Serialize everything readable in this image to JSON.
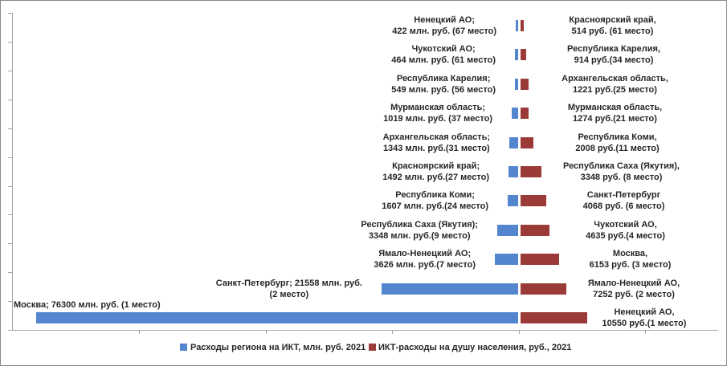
{
  "legend": {
    "left": "Расходы региона на ИКТ, млн. руб. 2021",
    "right": "ИКТ-расходы на душу населения, руб., 2021"
  },
  "colors": {
    "left_series": "#5486d0",
    "right_series": "#9a3b37",
    "axis": "#a6a6a6",
    "text": "#262626"
  },
  "rows": [
    {
      "left": {
        "region": "Ненецкий АО",
        "value": 422,
        "rank": 67,
        "label_lines": [
          "Ненецкий АО;",
          "422 млн. руб. (67 место)"
        ]
      },
      "right": {
        "region": "Красноярский край",
        "value": 514,
        "rank": 61,
        "label_lines": [
          "Красноярский край,",
          "514 руб. (61 место)"
        ]
      }
    },
    {
      "left": {
        "region": "Чукотский АО",
        "value": 464,
        "rank": 61,
        "label_lines": [
          "Чукотский АО;",
          "464 млн. руб. (61 место)"
        ]
      },
      "right": {
        "region": "Республика Карелия",
        "value": 914,
        "rank": 34,
        "label_lines": [
          "Республика Карелия,",
          "914 руб.(34 место)"
        ]
      }
    },
    {
      "left": {
        "region": "Республика Карелия",
        "value": 549,
        "rank": 56,
        "label_lines": [
          "Республика Карелия;",
          "549 млн. руб. (56 место)"
        ]
      },
      "right": {
        "region": "Архангельская область",
        "value": 1221,
        "rank": 25,
        "label_lines": [
          "Архангельская область,",
          "1221 руб.(25 место)"
        ]
      }
    },
    {
      "left": {
        "region": "Мурманская область",
        "value": 1019,
        "rank": 37,
        "label_lines": [
          "Мурманская область;",
          "1019 млн. руб. (37 место)"
        ]
      },
      "right": {
        "region": "Мурманская область",
        "value": 1274,
        "rank": 21,
        "label_lines": [
          "Мурманская область,",
          "1274 руб.(21 место)"
        ]
      }
    },
    {
      "left": {
        "region": "Архангельская область",
        "value": 1343,
        "rank": 31,
        "label_lines": [
          "Архангельская область;",
          "1343 млн. руб.(31 место)"
        ]
      },
      "right": {
        "region": "Республика Коми",
        "value": 2008,
        "rank": 11,
        "label_lines": [
          "Республика Коми,",
          "2008 руб.(11 место)"
        ]
      }
    },
    {
      "left": {
        "region": "Красноярский край",
        "value": 1492,
        "rank": 27,
        "label_lines": [
          "Красноярский край;",
          "1492 млн. руб.(27 место)"
        ]
      },
      "right": {
        "region": "Республика Саха (Якутия)",
        "value": 3348,
        "rank": 8,
        "label_lines": [
          "Республика Саха (Якутия),",
          "3348 руб. (8 место)"
        ]
      }
    },
    {
      "left": {
        "region": "Республика Коми",
        "value": 1607,
        "rank": 24,
        "label_lines": [
          "Республика Коми;",
          "1607 млн. руб.(24 место)"
        ]
      },
      "right": {
        "region": "Санкт-Петербург",
        "value": 4068,
        "rank": 6,
        "label_lines": [
          "Санкт-Петербург",
          "4068 руб. (6 место)"
        ]
      }
    },
    {
      "left": {
        "region": "Республика Саха (Якутия)",
        "value": 3348,
        "rank": 9,
        "label_lines": [
          "Республика Саха (Якутия);",
          "3348 млн. руб.(9 место)"
        ]
      },
      "right": {
        "region": "Чукотский АО",
        "value": 4635,
        "rank": 4,
        "label_lines": [
          "Чукотский АО,",
          "4635 руб.(4 место)"
        ]
      }
    },
    {
      "left": {
        "region": "Ямало-Ненецкий АО",
        "value": 3626,
        "rank": 7,
        "label_lines": [
          "Ямало-Ненецкий АО;",
          "3626 млн. руб.(7 место)"
        ]
      },
      "right": {
        "region": "Москва",
        "value": 6153,
        "rank": 3,
        "label_lines": [
          "Москва,",
          "6153 руб. (3 место)"
        ]
      }
    },
    {
      "left": {
        "region": "Санкт-Петербург",
        "value": 21558,
        "rank": 2,
        "label_lines": [
          "Санкт-Петербург; 21558 млн. руб.",
          "(2 место)"
        ]
      },
      "right": {
        "region": "Ямало-Ненецкий АО",
        "value": 7252,
        "rank": 2,
        "label_lines": [
          "Ямало-Ненецкий АО,",
          "7252 руб. (2 место)"
        ]
      }
    },
    {
      "left": {
        "region": "Москва",
        "value": 76300,
        "rank": 1,
        "label_lines": [
          "Москва; 76300 млн. руб. (1 место)"
        ]
      },
      "right": {
        "region": "Ненецкий АО",
        "value": 10550,
        "rank": 1,
        "label_lines": [
          "Ненецкий АО,",
          "10550 руб.(1 место)"
        ]
      }
    }
  ],
  "chart_data": {
    "type": "bar",
    "subtype": "horizontal-bilateral-tornado",
    "title": "",
    "legend_position": "bottom",
    "grid": false,
    "x_axis": {
      "tick_labels_visible": false,
      "tick_interval_estimate": 20000,
      "left_max_estimate": 80000,
      "right_max_estimate": 31000
    },
    "series": [
      {
        "name": "Расходы региона на ИКТ, млн. руб. 2021",
        "side": "left",
        "unit": "млн. руб.",
        "color": "#5486d0",
        "points_top_to_bottom": [
          {
            "region": "Ненецкий АО",
            "value": 422,
            "rank": 67
          },
          {
            "region": "Чукотский АО",
            "value": 464,
            "rank": 61
          },
          {
            "region": "Республика Карелия",
            "value": 549,
            "rank": 56
          },
          {
            "region": "Мурманская область",
            "value": 1019,
            "rank": 37
          },
          {
            "region": "Архангельская область",
            "value": 1343,
            "rank": 31
          },
          {
            "region": "Красноярский край",
            "value": 1492,
            "rank": 27
          },
          {
            "region": "Республика Коми",
            "value": 1607,
            "rank": 24
          },
          {
            "region": "Республика Саха (Якутия)",
            "value": 3348,
            "rank": 9
          },
          {
            "region": "Ямало-Ненецкий АО",
            "value": 3626,
            "rank": 7
          },
          {
            "region": "Санкт-Петербург",
            "value": 21558,
            "rank": 2
          },
          {
            "region": "Москва",
            "value": 76300,
            "rank": 1
          }
        ]
      },
      {
        "name": "ИКТ-расходы на душу населения, руб., 2021",
        "side": "right",
        "unit": "руб.",
        "color": "#9a3b37",
        "points_top_to_bottom": [
          {
            "region": "Красноярский край",
            "value": 514,
            "rank": 61
          },
          {
            "region": "Республика Карелия",
            "value": 914,
            "rank": 34
          },
          {
            "region": "Архангельская область",
            "value": 1221,
            "rank": 25
          },
          {
            "region": "Мурманская область",
            "value": 1274,
            "rank": 21
          },
          {
            "region": "Республика Коми",
            "value": 2008,
            "rank": 11
          },
          {
            "region": "Республика Саха (Якутия)",
            "value": 3348,
            "rank": 8
          },
          {
            "region": "Санкт-Петербург",
            "value": 4068,
            "rank": 6
          },
          {
            "region": "Чукотский АО",
            "value": 4635,
            "rank": 4
          },
          {
            "region": "Москва",
            "value": 6153,
            "rank": 3
          },
          {
            "region": "Ямало-Ненецкий АО",
            "value": 7252,
            "rank": 2
          },
          {
            "region": "Ненецкий АО",
            "value": 10550,
            "rank": 1
          }
        ]
      }
    ]
  }
}
